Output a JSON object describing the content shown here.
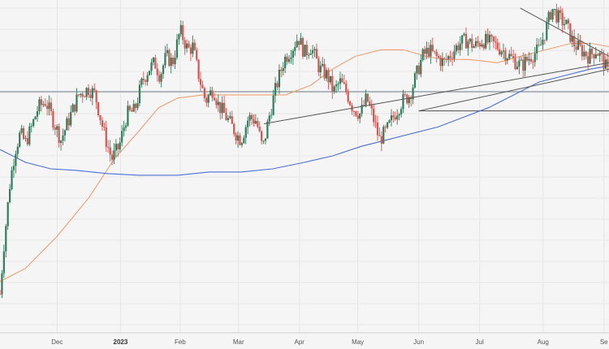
{
  "chart_data": {
    "type": "candlestick",
    "title": "",
    "xlabel": "",
    "ylabel": "",
    "x_tick_labels": [
      "Dec",
      "2023",
      "Feb",
      "Mar",
      "Apr",
      "May",
      "Jun",
      "Jul",
      "Aug",
      "Se"
    ],
    "y_axis": "price (unlabeled, approx. chart units)",
    "ylim": [
      0,
      100
    ],
    "grid": true,
    "legend": "none",
    "colors": {
      "up": "#2e7d5b",
      "down": "#d9534f",
      "sma_fast": "#f0a070",
      "sma_slow": "#4a6fd8",
      "trendline": "#555555",
      "horizontal_line": "#7f8c99",
      "background": "#f5f5f5",
      "grid": "#e6e6e6"
    },
    "price_path": [
      [
        0,
        10
      ],
      [
        3,
        25
      ],
      [
        8,
        45
      ],
      [
        12,
        55
      ],
      [
        16,
        60
      ],
      [
        20,
        57
      ],
      [
        25,
        62
      ],
      [
        30,
        68
      ],
      [
        36,
        70
      ],
      [
        42,
        64
      ],
      [
        48,
        58
      ],
      [
        54,
        64
      ],
      [
        62,
        72
      ],
      [
        70,
        74
      ],
      [
        75,
        72
      ],
      [
        82,
        60
      ],
      [
        88,
        52
      ],
      [
        94,
        56
      ],
      [
        100,
        66
      ],
      [
        106,
        67
      ],
      [
        112,
        76
      ],
      [
        117,
        80
      ],
      [
        122,
        82
      ],
      [
        126,
        78
      ],
      [
        131,
        84
      ],
      [
        136,
        82
      ],
      [
        142,
        92
      ],
      [
        148,
        86
      ],
      [
        152,
        87
      ],
      [
        156,
        79
      ],
      [
        162,
        70
      ],
      [
        168,
        74
      ],
      [
        172,
        69
      ],
      [
        180,
        64
      ],
      [
        186,
        60
      ],
      [
        190,
        58
      ],
      [
        196,
        65
      ],
      [
        202,
        64
      ],
      [
        207,
        55
      ],
      [
        212,
        65
      ],
      [
        218,
        75
      ],
      [
        224,
        83
      ],
      [
        231,
        87
      ],
      [
        235,
        90
      ],
      [
        240,
        85
      ],
      [
        245,
        87
      ],
      [
        252,
        80
      ],
      [
        258,
        78
      ],
      [
        263,
        73
      ],
      [
        268,
        76
      ],
      [
        273,
        73
      ],
      [
        278,
        68
      ],
      [
        284,
        66
      ],
      [
        289,
        71
      ],
      [
        294,
        65
      ],
      [
        299,
        58
      ],
      [
        305,
        61
      ],
      [
        311,
        66
      ],
      [
        317,
        70
      ],
      [
        323,
        72
      ],
      [
        328,
        78
      ],
      [
        333,
        84
      ],
      [
        338,
        86
      ],
      [
        343,
        84
      ],
      [
        350,
        82
      ],
      [
        356,
        85
      ],
      [
        362,
        88
      ],
      [
        368,
        89
      ],
      [
        374,
        87
      ],
      [
        380,
        89
      ],
      [
        388,
        88
      ],
      [
        396,
        86
      ],
      [
        404,
        83
      ],
      [
        411,
        81
      ],
      [
        418,
        84
      ],
      [
        425,
        86
      ],
      [
        430,
        92
      ],
      [
        435,
        99
      ],
      [
        440,
        96
      ],
      [
        446,
        94
      ],
      [
        452,
        88
      ],
      [
        458,
        86
      ],
      [
        464,
        84
      ],
      [
        470,
        86
      ],
      [
        476,
        82
      ],
      [
        480,
        78
      ]
    ],
    "series": [
      {
        "name": "",
        "kind": "moving-average-fast",
        "points": [
          [
            0,
            14
          ],
          [
            20,
            18
          ],
          [
            45,
            28
          ],
          [
            70,
            40
          ],
          [
            90,
            52
          ],
          [
            110,
            61
          ],
          [
            125,
            68
          ],
          [
            140,
            71
          ],
          [
            160,
            72
          ],
          [
            180,
            72
          ],
          [
            200,
            72
          ],
          [
            225,
            72
          ],
          [
            245,
            75
          ],
          [
            262,
            80
          ],
          [
            280,
            84
          ],
          [
            300,
            86
          ],
          [
            318,
            86
          ],
          [
            336,
            84
          ],
          [
            350,
            83
          ],
          [
            370,
            83
          ],
          [
            392,
            82
          ],
          [
            410,
            84
          ],
          [
            430,
            86
          ],
          [
            450,
            88
          ],
          [
            466,
            88
          ],
          [
            480,
            87
          ]
        ]
      },
      {
        "name": "",
        "kind": "moving-average-slow",
        "points": [
          [
            0,
            55
          ],
          [
            20,
            51
          ],
          [
            40,
            49
          ],
          [
            60,
            48.5
          ],
          [
            85,
            47.5
          ],
          [
            110,
            47
          ],
          [
            140,
            47
          ],
          [
            165,
            48
          ],
          [
            190,
            48
          ],
          [
            215,
            49
          ],
          [
            240,
            51
          ],
          [
            262,
            53
          ],
          [
            285,
            56
          ],
          [
            305,
            58
          ],
          [
            325,
            60
          ],
          [
            345,
            62
          ],
          [
            365,
            65
          ],
          [
            385,
            68
          ],
          [
            405,
            72
          ],
          [
            425,
            76
          ],
          [
            445,
            78
          ],
          [
            465,
            80
          ],
          [
            480,
            81
          ]
        ]
      }
    ],
    "support_lines": [
      {
        "kind": "trendline",
        "from": [
          208,
          63
        ],
        "to": [
          480,
          82
        ]
      },
      {
        "kind": "trendline",
        "from": [
          330,
          67
        ],
        "to": [
          480,
          80
        ]
      },
      {
        "kind": "trendline",
        "from": [
          410,
          99
        ],
        "to": [
          480,
          84
        ]
      },
      {
        "kind": "horizontal",
        "y": 73
      },
      {
        "kind": "horizontal",
        "y": 67
      }
    ]
  }
}
